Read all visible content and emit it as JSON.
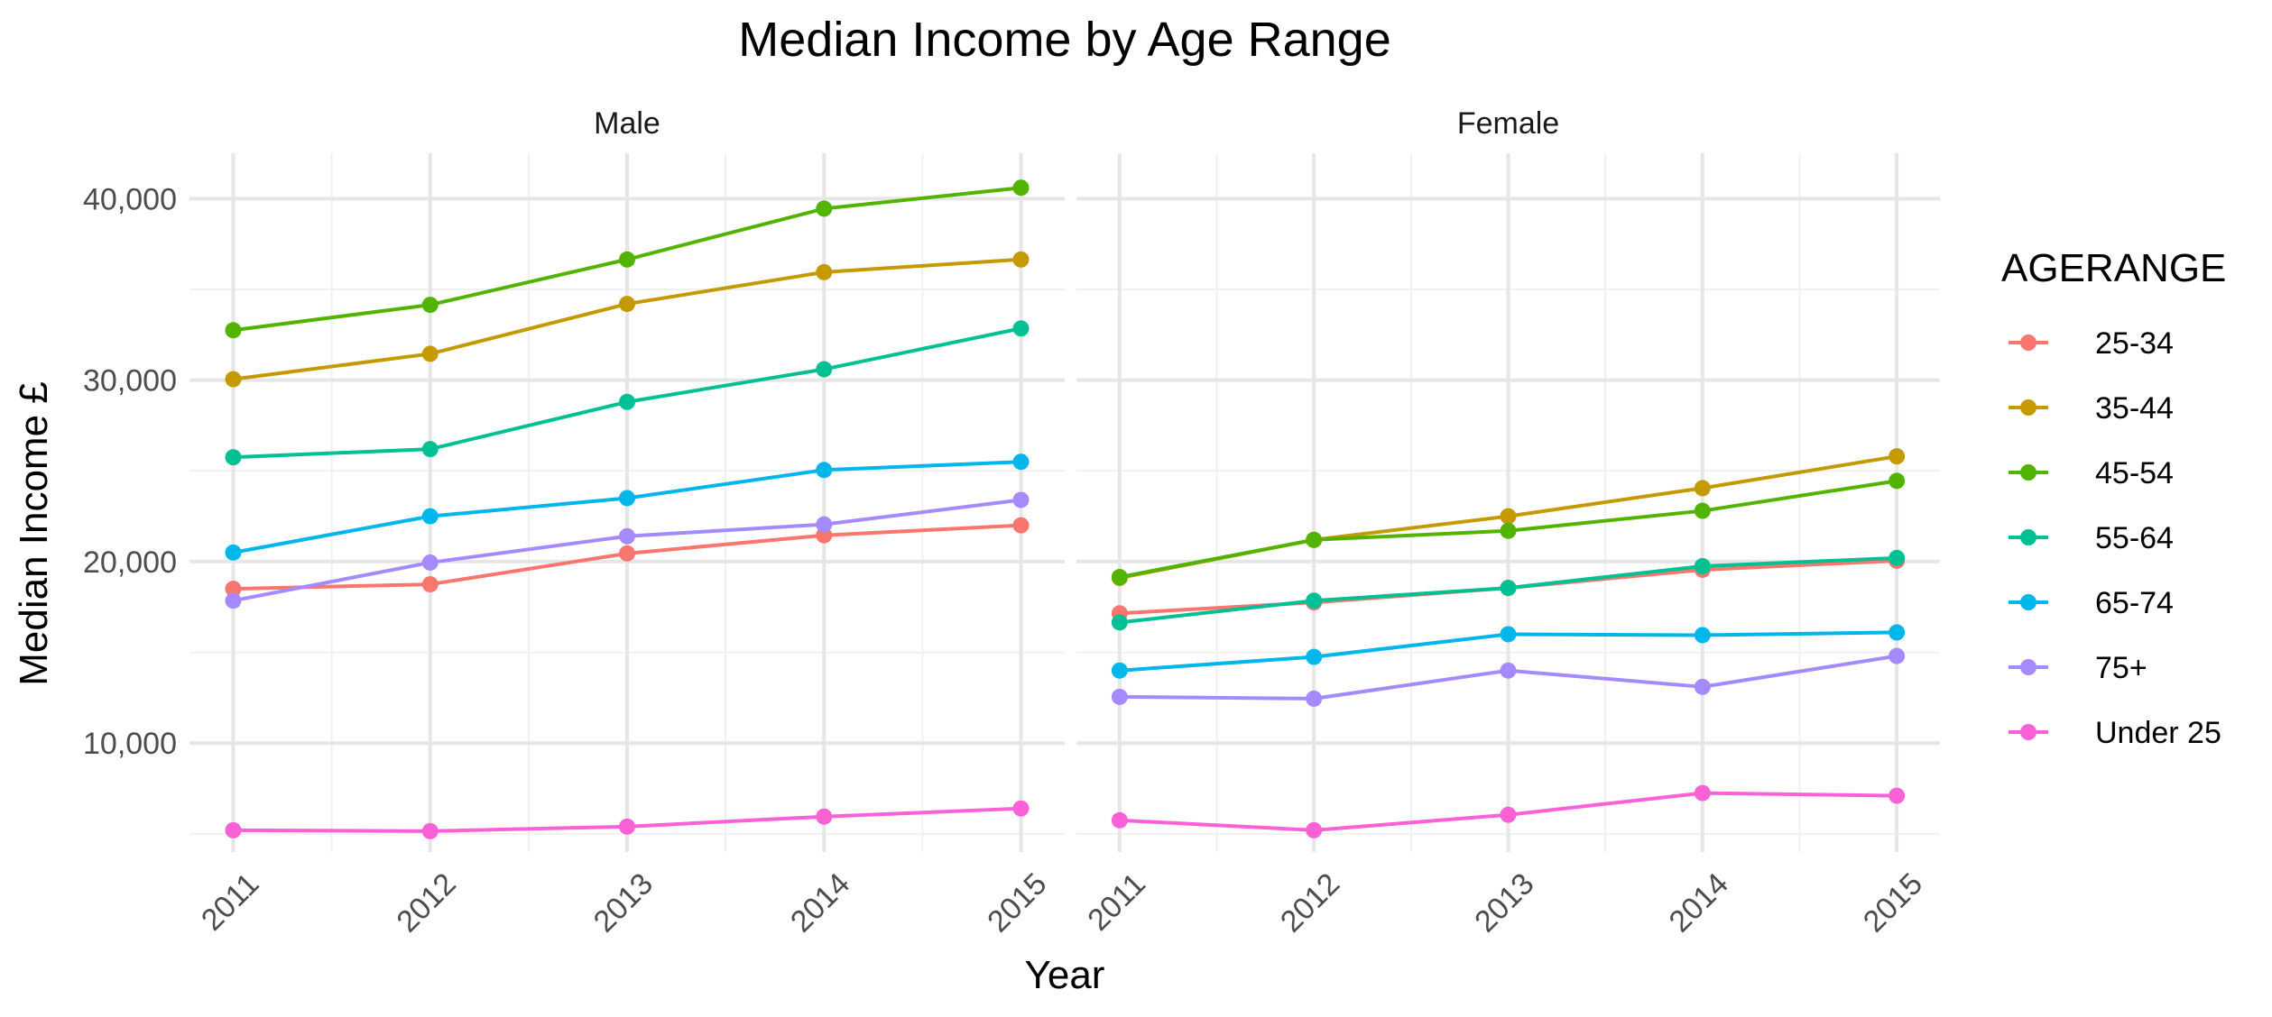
{
  "chart_data": {
    "type": "line",
    "title": "Median Income by Age Range",
    "xlabel": "Year",
    "ylabel": "Median Income £",
    "legend_title": "AGERANGE",
    "legend_position": "right",
    "grid": true,
    "x": [
      2011,
      2012,
      2013,
      2014,
      2015
    ],
    "x_tick_labels": [
      "2011",
      "2012",
      "2013",
      "2014",
      "2015"
    ],
    "y_ticks": [
      10000,
      20000,
      30000,
      40000
    ],
    "y_tick_labels": [
      "10,000",
      "20,000",
      "30,000",
      "40,000"
    ],
    "ylim": [
      4000,
      42500
    ],
    "series_order": [
      "25-34",
      "35-44",
      "45-54",
      "55-64",
      "65-74",
      "75+",
      "Under 25"
    ],
    "colors": {
      "25-34": "#F8766D",
      "35-44": "#C49A00",
      "45-54": "#53B400",
      "55-64": "#00C094",
      "65-74": "#00B6EB",
      "75+": "#A58AFF",
      "Under 25": "#FB61D7"
    },
    "panels": [
      {
        "name": "Male",
        "series": [
          {
            "name": "25-34",
            "values": [
              18500,
              18750,
              20450,
              21450,
              22000
            ]
          },
          {
            "name": "35-44",
            "values": [
              30050,
              31450,
              34200,
              35950,
              36650
            ]
          },
          {
            "name": "45-54",
            "values": [
              32750,
              34150,
              36650,
              39450,
              40600
            ]
          },
          {
            "name": "55-64",
            "values": [
              25750,
              26200,
              28800,
              30600,
              32850
            ]
          },
          {
            "name": "65-74",
            "values": [
              20500,
              22500,
              23500,
              25050,
              25500
            ]
          },
          {
            "name": "75+",
            "values": [
              17850,
              19950,
              21400,
              22050,
              23400
            ]
          },
          {
            "name": "Under 25",
            "values": [
              5200,
              5150,
              5400,
              5950,
              6400
            ]
          }
        ]
      },
      {
        "name": "Female",
        "series": [
          {
            "name": "25-34",
            "values": [
              17150,
              17750,
              18550,
              19550,
              20050
            ]
          },
          {
            "name": "35-44",
            "values": [
              19100,
              21200,
              22500,
              24050,
              25800
            ]
          },
          {
            "name": "45-54",
            "values": [
              19150,
              21200,
              21700,
              22800,
              24450
            ]
          },
          {
            "name": "55-64",
            "values": [
              16650,
              17850,
              18550,
              19750,
              20200
            ]
          },
          {
            "name": "65-74",
            "values": [
              14000,
              14750,
              16000,
              15950,
              16100
            ]
          },
          {
            "name": "75+",
            "values": [
              12550,
              12450,
              14000,
              13100,
              14800
            ]
          },
          {
            "name": "Under 25",
            "values": [
              5750,
              5200,
              6050,
              7250,
              7100
            ]
          }
        ]
      }
    ]
  }
}
